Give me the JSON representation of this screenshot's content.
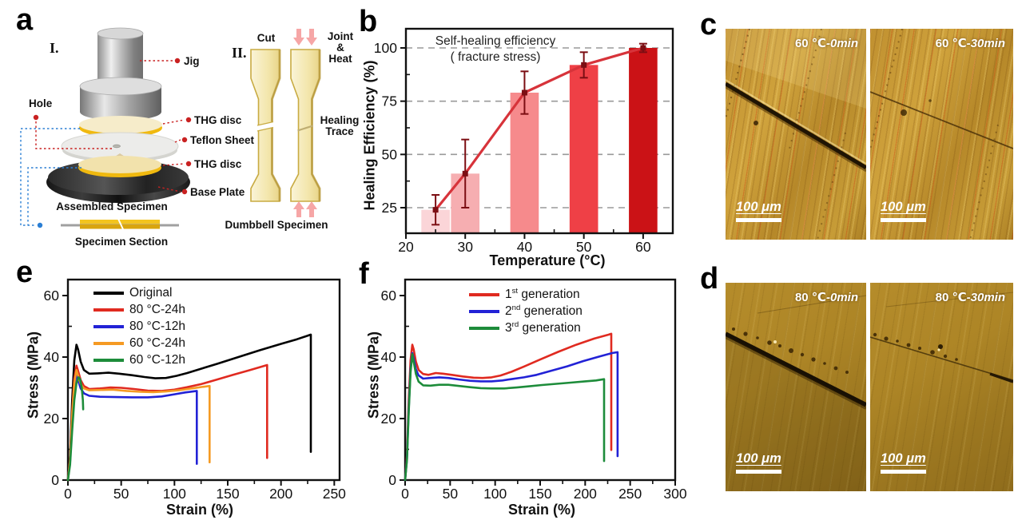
{
  "panels": {
    "a": {
      "label": "a",
      "part1": "I.",
      "part2": "II.",
      "jig": "Jig",
      "hole": "Hole",
      "thg_disc_top": "THG disc",
      "teflon": "Teflon Sheet",
      "thg_disc_bottom": "THG disc",
      "base_plate": "Base Plate",
      "assembled": "Assembled Specimen",
      "specimen_section": "Specimen Section",
      "cut": "Cut",
      "joint1": "Joint",
      "joint2": "&",
      "joint3": "Heat",
      "healing1": "Healing",
      "healing2": "Trace",
      "dumbbell": "Dumbbell  Specimen"
    },
    "b": {
      "label": "b"
    },
    "c": {
      "label": "c",
      "images": [
        {
          "temp": "60 ℃",
          "time": "-0min",
          "scale": "100 μm"
        },
        {
          "temp": "60 ℃",
          "time": "-30min",
          "scale": "100 μm"
        }
      ]
    },
    "d": {
      "label": "d",
      "images": [
        {
          "temp": "80 ℃",
          "time": "-0min",
          "scale": "100 μm"
        },
        {
          "temp": "80 ℃",
          "time": "-30min",
          "scale": "100 μm"
        }
      ]
    },
    "e": {
      "label": "e"
    },
    "f": {
      "label": "f"
    }
  },
  "chart_data": [
    {
      "id": "b",
      "type": "bar",
      "title": "Self-healing efficiency",
      "subtitle": "( fracture stress)",
      "xlabel": "Temperature (°C)",
      "ylabel": "Healing Efficiency (%)",
      "categories": [
        25,
        30,
        40,
        50,
        60
      ],
      "values": [
        24,
        41,
        79,
        92,
        100
      ],
      "errors": [
        7,
        16,
        10,
        6,
        2
      ],
      "bar_colors": [
        "#fbd5d8",
        "#f6aeb1",
        "#f68a8c",
        "#ef4046",
        "#cb1216"
      ],
      "line_color": "#d7333a",
      "marker_color": "#7c0e13",
      "xticks": [
        20,
        30,
        40,
        50,
        60
      ],
      "xminor": [
        25,
        35,
        45,
        55
      ],
      "yticks": [
        25,
        50,
        75,
        100
      ],
      "yminor": [
        37.5,
        62.5,
        87.5
      ],
      "xlim": [
        20,
        65
      ],
      "ylim": [
        13,
        109
      ],
      "grid": "horizontal-dashed",
      "grid_values": [
        25,
        50,
        75,
        100
      ],
      "bar_width_units": 4.8,
      "legend_position": "none"
    },
    {
      "id": "e",
      "type": "line",
      "xlabel": "Strain (%)",
      "ylabel": "Stress (MPa)",
      "xticks": [
        0,
        50,
        100,
        150,
        200,
        250
      ],
      "xminor": [
        25,
        75,
        125,
        175,
        225
      ],
      "yticks": [
        0,
        20,
        40,
        60
      ],
      "yminor": [
        10,
        30,
        50
      ],
      "xlim": [
        0,
        255
      ],
      "ylim": [
        0,
        65.2
      ],
      "grid": "off",
      "legend_position": "upper-left",
      "legend": [
        {
          "label": "Original",
          "color": "#000000"
        },
        {
          "label": "80 °C-24h",
          "color": "#e02a20"
        },
        {
          "label": "80 °C-12h",
          "color": "#2222d6"
        },
        {
          "label": "60 °C-24h",
          "color": "#f59a23"
        },
        {
          "label": "60 °C-12h",
          "color": "#1d8c3a"
        }
      ],
      "series": [
        {
          "name": "Original",
          "color": "#000000",
          "points": [
            [
              0,
              0
            ],
            [
              2,
              8
            ],
            [
              4,
              26
            ],
            [
              6,
              39
            ],
            [
              8,
              44
            ],
            [
              9.5,
              42.5
            ],
            [
              12,
              38.5
            ],
            [
              15,
              35.8
            ],
            [
              20,
              34.6
            ],
            [
              28,
              34.7
            ],
            [
              38,
              34.9
            ],
            [
              48,
              34.6
            ],
            [
              60,
              34.1
            ],
            [
              72,
              33.5
            ],
            [
              82,
              33.1
            ],
            [
              92,
              33.2
            ],
            [
              102,
              33.9
            ],
            [
              112,
              34.8
            ],
            [
              125,
              36.2
            ],
            [
              140,
              37.8
            ],
            [
              160,
              40
            ],
            [
              180,
              42.2
            ],
            [
              200,
              44.3
            ],
            [
              215,
              45.8
            ],
            [
              228,
              47.3
            ],
            [
              228,
              9.2
            ]
          ]
        },
        {
          "name": "80 °C-24h",
          "color": "#e02a20",
          "points": [
            [
              0,
              0
            ],
            [
              2,
              7
            ],
            [
              4,
              22
            ],
            [
              6,
              33
            ],
            [
              8,
              37.2
            ],
            [
              9.5,
              35.5
            ],
            [
              12,
              32.5
            ],
            [
              15,
              30.6
            ],
            [
              20,
              29.6
            ],
            [
              30,
              29.8
            ],
            [
              40,
              30.1
            ],
            [
              50,
              30
            ],
            [
              62,
              29.6
            ],
            [
              75,
              29.1
            ],
            [
              88,
              29
            ],
            [
              100,
              29.4
            ],
            [
              112,
              30.2
            ],
            [
              125,
              31.2
            ],
            [
              140,
              32.7
            ],
            [
              155,
              34.2
            ],
            [
              170,
              35.7
            ],
            [
              187,
              37.4
            ],
            [
              187,
              7.2
            ]
          ]
        },
        {
          "name": "80 °C-12h",
          "color": "#2222d6",
          "points": [
            [
              0,
              0
            ],
            [
              2,
              6
            ],
            [
              4,
              20
            ],
            [
              6,
              30.5
            ],
            [
              8,
              34.2
            ],
            [
              9.5,
              32.5
            ],
            [
              12,
              29.8
            ],
            [
              15,
              28.2
            ],
            [
              20,
              27.4
            ],
            [
              30,
              27.1
            ],
            [
              45,
              27
            ],
            [
              60,
              26.9
            ],
            [
              75,
              26.9
            ],
            [
              88,
              27.2
            ],
            [
              100,
              27.9
            ],
            [
              110,
              28.5
            ],
            [
              121,
              29
            ],
            [
              121,
              5.3
            ]
          ]
        },
        {
          "name": "60 °C-24h",
          "color": "#f59a23",
          "points": [
            [
              0,
              0
            ],
            [
              2,
              6.5
            ],
            [
              4,
              21
            ],
            [
              6,
              31.5
            ],
            [
              8,
              35.8
            ],
            [
              9.5,
              34
            ],
            [
              12,
              31.2
            ],
            [
              15,
              29.8
            ],
            [
              20,
              29.2
            ],
            [
              30,
              29.3
            ],
            [
              42,
              29.4
            ],
            [
              55,
              29
            ],
            [
              68,
              28.7
            ],
            [
              80,
              28.6
            ],
            [
              92,
              28.8
            ],
            [
              104,
              29.2
            ],
            [
              116,
              29.8
            ],
            [
              126,
              30.3
            ],
            [
              133,
              30.6
            ],
            [
              133,
              5.8
            ]
          ]
        },
        {
          "name": "60 °C-12h",
          "color": "#1d8c3a",
          "points": [
            [
              0,
              0
            ],
            [
              2,
              5
            ],
            [
              4,
              16
            ],
            [
              6,
              26
            ],
            [
              8,
              31.5
            ],
            [
              10,
              33.4
            ],
            [
              11.5,
              32.8
            ],
            [
              13,
              30
            ],
            [
              14,
              26
            ],
            [
              14.3,
              23
            ]
          ]
        }
      ]
    },
    {
      "id": "f",
      "type": "line",
      "xlabel": "Strain (%)",
      "ylabel": "Stress (MPa)",
      "xticks": [
        0,
        50,
        100,
        150,
        200,
        250,
        300
      ],
      "xminor": [
        25,
        75,
        125,
        175,
        225,
        275
      ],
      "yticks": [
        0,
        20,
        40,
        60
      ],
      "yminor": [
        10,
        30,
        50
      ],
      "xlim": [
        0,
        300
      ],
      "ylim": [
        0,
        65.2
      ],
      "grid": "off",
      "legend_position": "upper-center",
      "legend": [
        {
          "pre": "1",
          "sup": "st",
          "post": " generation",
          "color": "#e02a20"
        },
        {
          "pre": "2",
          "sup": "nd",
          "post": " generation",
          "color": "#2222d6"
        },
        {
          "pre": "3",
          "sup": "rd",
          "post": " generation",
          "color": "#1d8c3a"
        }
      ],
      "series": [
        {
          "name": "1st generation",
          "color": "#e02a20",
          "points": [
            [
              0,
              0
            ],
            [
              2,
              8
            ],
            [
              4,
              26
            ],
            [
              6,
              39
            ],
            [
              8,
              44
            ],
            [
              9.5,
              42.5
            ],
            [
              12,
              38.5
            ],
            [
              15,
              35.8
            ],
            [
              20,
              34.5
            ],
            [
              26,
              34.2
            ],
            [
              34,
              34.8
            ],
            [
              42,
              34.6
            ],
            [
              52,
              34.2
            ],
            [
              64,
              33.7
            ],
            [
              76,
              33.3
            ],
            [
              86,
              33.2
            ],
            [
              96,
              33.4
            ],
            [
              106,
              34
            ],
            [
              118,
              35.2
            ],
            [
              132,
              36.9
            ],
            [
              150,
              39.2
            ],
            [
              170,
              41.7
            ],
            [
              190,
              44
            ],
            [
              210,
              46
            ],
            [
              225,
              47.2
            ],
            [
              229,
              47.6
            ],
            [
              229,
              9.8
            ]
          ]
        },
        {
          "name": "2nd generation",
          "color": "#2222d6",
          "points": [
            [
              0,
              0
            ],
            [
              2,
              7
            ],
            [
              4,
              23
            ],
            [
              6,
              36
            ],
            [
              8,
              41.3
            ],
            [
              9.5,
              39.5
            ],
            [
              12,
              36
            ],
            [
              15,
              34
            ],
            [
              20,
              33
            ],
            [
              28,
              33.2
            ],
            [
              38,
              33.4
            ],
            [
              48,
              33.2
            ],
            [
              60,
              32.7
            ],
            [
              72,
              32.3
            ],
            [
              84,
              32.1
            ],
            [
              96,
              32.1
            ],
            [
              108,
              32.4
            ],
            [
              120,
              32.9
            ],
            [
              132,
              33.4
            ],
            [
              146,
              34.2
            ],
            [
              162,
              35.5
            ],
            [
              180,
              37
            ],
            [
              198,
              38.7
            ],
            [
              216,
              40.2
            ],
            [
              230,
              41.3
            ],
            [
              236,
              41.6
            ],
            [
              236,
              7.8
            ]
          ]
        },
        {
          "name": "3rd generation",
          "color": "#1d8c3a",
          "points": [
            [
              0,
              0
            ],
            [
              2,
              6.5
            ],
            [
              4,
              22
            ],
            [
              6,
              35
            ],
            [
              8,
              41
            ],
            [
              9.5,
              38.5
            ],
            [
              12,
              34.5
            ],
            [
              15,
              32
            ],
            [
              20,
              30.8
            ],
            [
              28,
              30.7
            ],
            [
              38,
              31
            ],
            [
              48,
              31
            ],
            [
              60,
              30.6
            ],
            [
              72,
              30.2
            ],
            [
              84,
              29.9
            ],
            [
              96,
              29.8
            ],
            [
              110,
              29.8
            ],
            [
              124,
              30.1
            ],
            [
              138,
              30.5
            ],
            [
              152,
              30.9
            ],
            [
              168,
              31.3
            ],
            [
              184,
              31.7
            ],
            [
              200,
              32.1
            ],
            [
              212,
              32.4
            ],
            [
              221,
              32.8
            ],
            [
              221,
              6.2
            ]
          ]
        }
      ]
    }
  ]
}
